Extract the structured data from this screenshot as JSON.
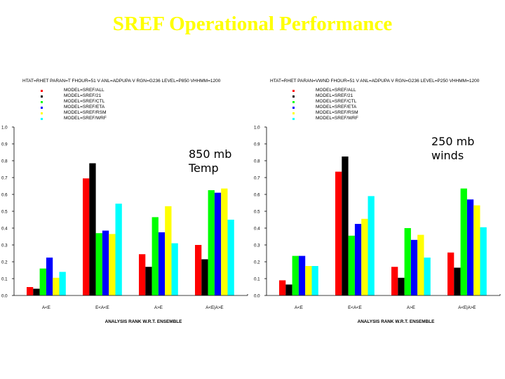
{
  "title": "SREF Operational Performance",
  "title_color": "#ffff00",
  "series_colors": [
    "#ff0000",
    "#000000",
    "#00ff00",
    "#0000ff",
    "#ffff00",
    "#00ffff"
  ],
  "chart_data": [
    {
      "type": "bar",
      "header": "HTAT=RHET PARAN=T FHOUR=51 V ANL=ADPUPA V RGN=G236 LEVEL=P850 VHHMM=1200",
      "annotation": [
        "850 mb",
        "Temp"
      ],
      "xlabel": "ANALYSIS RANK W.R.T. ENSEMBLE",
      "ylabel": "",
      "categories": [
        "A<E",
        "E<A<E",
        "A>E",
        "A<E|A>E"
      ],
      "yticks": [
        "0.0",
        "0.1",
        "0.2",
        "0.3",
        "0.4",
        "0.5",
        "0.6",
        "0.7",
        "0.8",
        "0.9",
        "1.0"
      ],
      "ylim": [
        0,
        1.0
      ],
      "series": [
        {
          "name": "MODEL=SREF/ALL",
          "values": [
            0.05,
            0.695,
            0.245,
            0.3
          ]
        },
        {
          "name": "MODEL=SREF/21",
          "values": [
            0.04,
            0.785,
            0.17,
            0.215
          ]
        },
        {
          "name": "MODEL=SREF/CTL",
          "values": [
            0.16,
            0.37,
            0.465,
            0.625
          ]
        },
        {
          "name": "MODEL=SREF/ETA",
          "values": [
            0.225,
            0.385,
            0.375,
            0.61
          ]
        },
        {
          "name": "MODEL=SREF/RSM",
          "values": [
            0.105,
            0.365,
            0.53,
            0.635
          ]
        },
        {
          "name": "MODEL=SREF/WRF",
          "values": [
            0.14,
            0.545,
            0.31,
            0.45
          ]
        }
      ]
    },
    {
      "type": "bar",
      "header": "HTAT=RHET PARAN=VWND FHOUR=51 V ANL=ADPUPA V RGN=G236 LEVEL=P250 VHHMM=1200",
      "annotation": [
        "250 mb",
        "winds"
      ],
      "xlabel": "ANALYSIS RANK W.R.T. ENSEMBLE",
      "ylabel": "",
      "categories": [
        "A<E",
        "E<A<E",
        "A>E",
        "A<E|A>E"
      ],
      "yticks": [
        "0.0",
        "0.1",
        "0.2",
        "0.3",
        "0.4",
        "0.5",
        "0.6",
        "0.7",
        "0.8",
        "0.9",
        "1.0"
      ],
      "ylim": [
        0,
        1.0
      ],
      "series": [
        {
          "name": "MODEL=SREF/ALL",
          "values": [
            0.09,
            0.735,
            0.17,
            0.255
          ]
        },
        {
          "name": "MODEL=SREF/21",
          "values": [
            0.065,
            0.825,
            0.105,
            0.165
          ]
        },
        {
          "name": "MODEL=SREF/CTL",
          "values": [
            0.235,
            0.355,
            0.4,
            0.635
          ]
        },
        {
          "name": "MODEL=SREF/ETA",
          "values": [
            0.235,
            0.425,
            0.33,
            0.57
          ]
        },
        {
          "name": "MODEL=SREF/RSM",
          "values": [
            0.175,
            0.455,
            0.36,
            0.535
          ]
        },
        {
          "name": "MODEL=SREF/WRF",
          "values": [
            0.175,
            0.59,
            0.225,
            0.405
          ]
        }
      ]
    }
  ]
}
